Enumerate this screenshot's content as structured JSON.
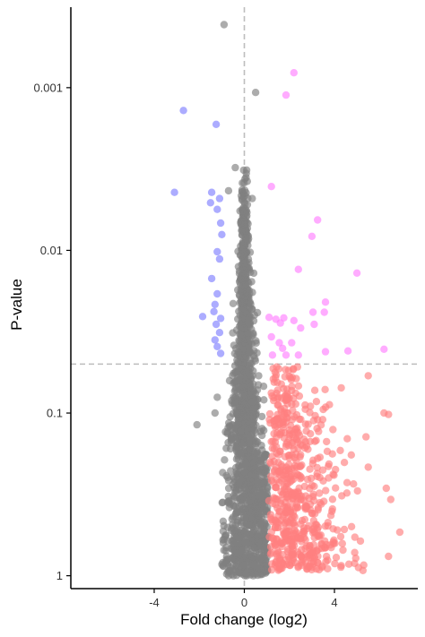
{
  "chart_data": {
    "type": "scatter",
    "title": "",
    "xlabel": "Fold change (log2)",
    "ylabel": "P-value",
    "xlim": [
      -7.7,
      7.7
    ],
    "ylim": [
      1.2,
      0.00032
    ],
    "y_scale": "log_reversed",
    "x_ticks": [
      -4,
      0,
      4
    ],
    "y_ticks": [
      0.001,
      0.01,
      0.1,
      1
    ],
    "y_tick_labels": [
      "0.001",
      "0.01",
      "0.1",
      "1"
    ],
    "reference_lines": {
      "x": 0,
      "y": 0.05
    },
    "grid": false,
    "legend": "none",
    "colors": {
      "not_significant": "#7f7f7f",
      "down_significant": "#8080ff",
      "up_significant": "#ff80ff",
      "up_nonsignificant": "#ff8080",
      "reference_line": "#bdbdbd",
      "axis": "#000000"
    },
    "notable_points": {
      "down_significant": [
        {
          "x": -2.7,
          "y": 0.00138
        },
        {
          "x": -1.25,
          "y": 0.00168
        },
        {
          "x": -3.1,
          "y": 0.0044
        },
        {
          "x": -1.45,
          "y": 0.0044
        },
        {
          "x": -1.1,
          "y": 0.0048
        },
        {
          "x": -1.5,
          "y": 0.0051
        },
        {
          "x": -1.2,
          "y": 0.0056
        },
        {
          "x": -1.05,
          "y": 0.0068
        },
        {
          "x": -1.0,
          "y": 0.008
        },
        {
          "x": -1.2,
          "y": 0.0102
        },
        {
          "x": -1.1,
          "y": 0.0113
        },
        {
          "x": -1.45,
          "y": 0.0149
        },
        {
          "x": -1.2,
          "y": 0.0185
        },
        {
          "x": -1.3,
          "y": 0.0215
        },
        {
          "x": -1.35,
          "y": 0.0238
        },
        {
          "x": -1.85,
          "y": 0.0255
        },
        {
          "x": -1.05,
          "y": 0.0262
        },
        {
          "x": -1.25,
          "y": 0.0285
        },
        {
          "x": -1.1,
          "y": 0.032
        },
        {
          "x": -1.3,
          "y": 0.0355
        },
        {
          "x": -1.2,
          "y": 0.039
        },
        {
          "x": -1.05,
          "y": 0.043
        }
      ],
      "up_significant": [
        {
          "x": 2.2,
          "y": 0.00081
        },
        {
          "x": 1.85,
          "y": 0.00111
        },
        {
          "x": 1.2,
          "y": 0.00405
        },
        {
          "x": 3.25,
          "y": 0.0065
        },
        {
          "x": 3.0,
          "y": 0.0082
        },
        {
          "x": 5.0,
          "y": 0.0138
        },
        {
          "x": 2.4,
          "y": 0.0131
        },
        {
          "x": 3.6,
          "y": 0.0208
        },
        {
          "x": 3.55,
          "y": 0.024
        },
        {
          "x": 3.05,
          "y": 0.024
        },
        {
          "x": 1.1,
          "y": 0.0258
        },
        {
          "x": 1.4,
          "y": 0.0265
        },
        {
          "x": 1.75,
          "y": 0.026
        },
        {
          "x": 1.6,
          "y": 0.028
        },
        {
          "x": 2.2,
          "y": 0.027
        },
        {
          "x": 2.5,
          "y": 0.03
        },
        {
          "x": 3.1,
          "y": 0.0285
        },
        {
          "x": 1.2,
          "y": 0.034
        },
        {
          "x": 1.55,
          "y": 0.037
        },
        {
          "x": 2.1,
          "y": 0.037
        },
        {
          "x": 1.7,
          "y": 0.04
        },
        {
          "x": 4.6,
          "y": 0.0415
        },
        {
          "x": 6.2,
          "y": 0.0405
        },
        {
          "x": 1.25,
          "y": 0.044
        },
        {
          "x": 1.85,
          "y": 0.044
        },
        {
          "x": 2.4,
          "y": 0.044
        },
        {
          "x": 3.6,
          "y": 0.042
        }
      ],
      "up_nonsignificant_outliers": [
        {
          "x": 5.5,
          "y": 0.059
        },
        {
          "x": 4.3,
          "y": 0.07
        },
        {
          "x": 6.4,
          "y": 0.102
        },
        {
          "x": 6.2,
          "y": 0.1
        },
        {
          "x": 5.4,
          "y": 0.14
        },
        {
          "x": 5.5,
          "y": 0.215
        },
        {
          "x": 6.3,
          "y": 0.29
        },
        {
          "x": 6.5,
          "y": 0.34
        },
        {
          "x": 6.9,
          "y": 0.54
        },
        {
          "x": 6.4,
          "y": 0.76
        },
        {
          "x": 5.3,
          "y": 0.86
        },
        {
          "x": 4.9,
          "y": 0.72
        },
        {
          "x": 3.2,
          "y": 0.085
        },
        {
          "x": 3.5,
          "y": 0.095
        }
      ],
      "not_significant_outliers": [
        {
          "x": -0.9,
          "y": 0.00041
        },
        {
          "x": 0.5,
          "y": 0.00107
        },
        {
          "x": -0.4,
          "y": 0.0031
        },
        {
          "x": -0.7,
          "y": 0.0043
        },
        {
          "x": 0.35,
          "y": 0.0048
        },
        {
          "x": -2.1,
          "y": 0.118
        },
        {
          "x": -1.2,
          "y": 0.08
        },
        {
          "x": -1.3,
          "y": 0.1
        }
      ]
    },
    "background_distribution": {
      "description_free": true,
      "n_gray": 1500,
      "n_red": 600,
      "seed": 42
    }
  }
}
